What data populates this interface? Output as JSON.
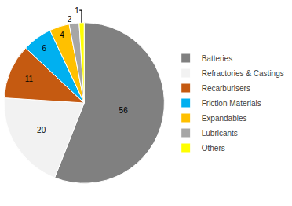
{
  "chart_data": {
    "type": "pie",
    "categories": [
      "Batteries",
      "Refractories & Castings",
      "Recarburisers",
      "Friction Materials",
      "Expandables",
      "Lubricants",
      "Others"
    ],
    "values": [
      56,
      20,
      11,
      6,
      4,
      2,
      1
    ],
    "colors": [
      "#808080",
      "#f2f2f2",
      "#c55a11",
      "#00b0f0",
      "#ffc000",
      "#a6a6a6",
      "#ffff00"
    ],
    "data_labels": true,
    "legend": "right"
  }
}
